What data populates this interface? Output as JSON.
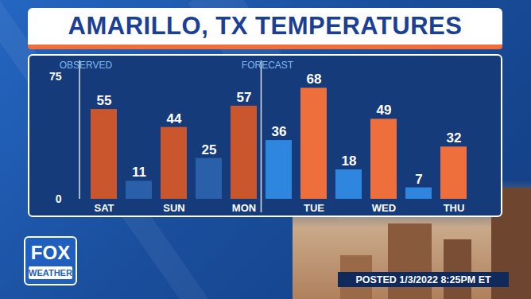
{
  "chart_data": {
    "type": "bar",
    "title": "AMARILLO, TX TEMPERATURES",
    "categories": [
      "SAT",
      null,
      "SUN",
      null,
      "MON",
      null,
      "TUE",
      null,
      "WED",
      null,
      "THU"
    ],
    "values": [
      55,
      11,
      44,
      25,
      57,
      36,
      68,
      18,
      49,
      7,
      32
    ],
    "colors": [
      "#c9562c",
      "#2a60aa",
      "#c9562c",
      "#2a60aa",
      "#c9562c",
      "#2e86de",
      "#ee6e3c",
      "#2e86de",
      "#ee6e3c",
      "#2e86de",
      "#ee6e3c"
    ],
    "ylim": [
      0,
      75
    ],
    "yticks": [
      0,
      75
    ],
    "grid": false,
    "data_labels": true,
    "annotations": [
      {
        "text": "OBSERVED",
        "start": 0
      },
      {
        "text": "FORECAST",
        "start": 5
      }
    ],
    "logo": [
      "FOX",
      "WEATHER"
    ],
    "caption": "POSTED 1/3/2022 8:25PM ET"
  }
}
